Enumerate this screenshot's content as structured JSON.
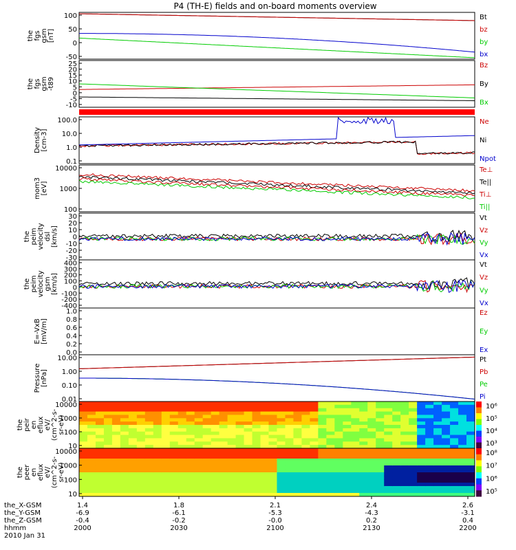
{
  "title": "P4 (TH-E) fields and on-board moments overview",
  "colors": {
    "black": "#000000",
    "red": "#cc0000",
    "green": "#00cc00",
    "blue": "#0000cc",
    "bright_red": "#ff0000",
    "stripe": "#ff0000"
  },
  "chart_data": [
    {
      "type": "line",
      "ylabel": [
        "the",
        "fgs",
        "gsm",
        "[nT]"
      ],
      "yticks": [
        "100",
        "50",
        "0",
        "-50"
      ],
      "ylim": [
        -85,
        110
      ],
      "legend": [
        {
          "label": "Bt",
          "color": "black"
        },
        {
          "label": "bz",
          "color": "red"
        },
        {
          "label": "by",
          "color": "green"
        },
        {
          "label": "bx",
          "color": "blue"
        }
      ]
    },
    {
      "type": "line",
      "ylabel": [
        "the",
        "fgs",
        "gsm",
        "-t89"
      ],
      "yticks": [
        "25",
        "20",
        "15",
        "10",
        "5",
        "0",
        "-5",
        "-10"
      ],
      "ylim": [
        -13,
        25
      ],
      "legend": [
        {
          "label": "Bz",
          "color": "red"
        },
        {
          "label": "By",
          "color": "black"
        },
        {
          "label": "Bx",
          "color": "green"
        }
      ]
    },
    {
      "type": "line",
      "ylabel": [
        "Density",
        "[cm-3]"
      ],
      "yticks": [
        "100.0",
        "10.0",
        "1.0",
        "0.1"
      ],
      "ylim": [
        0.07,
        300
      ],
      "log": true,
      "legend": [
        {
          "label": "Ne",
          "color": "red"
        },
        {
          "label": "Ni",
          "color": "black"
        },
        {
          "label": "Npot",
          "color": "blue"
        }
      ]
    },
    {
      "type": "line",
      "ylabel": [
        "mom3",
        "[eV]"
      ],
      "yticks": [
        "10000",
        "1000",
        "100"
      ],
      "ylim": [
        30,
        10000
      ],
      "log": true,
      "legend": [
        {
          "label": "Te⊥",
          "color": "red"
        },
        {
          "label": "Te||",
          "color": "black"
        },
        {
          "label": "Ti⊥",
          "color": "red"
        },
        {
          "label": "Ti||",
          "color": "green"
        }
      ]
    },
    {
      "type": "line",
      "ylabel": [
        "the",
        "peim",
        "velocity",
        "dsl",
        "[km/s]"
      ],
      "yticks": [
        "30",
        "20",
        "10",
        "0",
        "-10",
        "-20",
        "-30"
      ],
      "ylim": [
        -35,
        35
      ],
      "legend": [
        {
          "label": "Vt",
          "color": "black"
        },
        {
          "label": "Vz",
          "color": "red"
        },
        {
          "label": "Vy",
          "color": "green"
        },
        {
          "label": "Vx",
          "color": "blue"
        }
      ]
    },
    {
      "type": "line",
      "ylabel": [
        "the",
        "peim",
        "velocity",
        "gsm",
        "[km/s]"
      ],
      "yticks": [
        "400",
        "300",
        "200",
        "100",
        "0",
        "-100",
        "-200",
        "-400"
      ],
      "ylim": [
        -450,
        420
      ],
      "legend": [
        {
          "label": "Vt",
          "color": "black"
        },
        {
          "label": "Vz",
          "color": "red"
        },
        {
          "label": "Vy",
          "color": "green"
        },
        {
          "label": "Vx",
          "color": "blue"
        }
      ]
    },
    {
      "type": "line",
      "ylabel": [
        "E=-VxB",
        "[mV/m]"
      ],
      "yticks": [
        "1.0",
        "0.8",
        "0.6",
        "0.4",
        "0.2",
        "0.0"
      ],
      "ylim": [
        0,
        1
      ],
      "legend": [
        {
          "label": "Ez",
          "color": "red"
        },
        {
          "label": "Ey",
          "color": "green"
        },
        {
          "label": "Ex",
          "color": "blue"
        }
      ]
    },
    {
      "type": "line",
      "ylabel": [
        "Pressure",
        "[nPa]"
      ],
      "yticks": [
        "10.00",
        "1.00",
        "0.10",
        "0.01"
      ],
      "ylim": [
        0.005,
        20
      ],
      "log": true,
      "legend": [
        {
          "label": "Pt",
          "color": "black"
        },
        {
          "label": "Pb",
          "color": "red"
        },
        {
          "label": "Pe",
          "color": "green"
        },
        {
          "label": "Pi",
          "color": "blue"
        }
      ]
    },
    {
      "type": "heatmap",
      "ylabel": [
        "the",
        "peir",
        "en",
        "eflux",
        "eV/",
        "(cm^2-s-",
        "sr-eV)"
      ],
      "yticks": [
        "10000",
        "1000",
        "100",
        "10"
      ],
      "ylim": [
        7,
        20000
      ],
      "log": true,
      "colorbar": [
        "10⁶",
        "10⁵",
        "10⁴",
        "10³"
      ]
    },
    {
      "type": "heatmap",
      "ylabel": [
        "the",
        "peer",
        "en",
        "eflux",
        "eV/",
        "(cm^2-s-",
        "sr-eV)"
      ],
      "yticks": [
        "10000",
        "1000",
        "100",
        "10"
      ],
      "ylim": [
        7,
        20000
      ],
      "log": true,
      "colorbar": [
        "10⁸",
        "10⁷",
        "10⁶",
        "10⁵"
      ]
    }
  ],
  "xaxis": {
    "rows": [
      {
        "label": "the_X-GSM",
        "values": [
          "1.4",
          "1.8",
          "2.1",
          "2.4",
          "2.6"
        ]
      },
      {
        "label": "the_Y-GSM",
        "values": [
          "-6.9",
          "-6.1",
          "-5.3",
          "-4.3",
          "-3.1"
        ]
      },
      {
        "label": "the_Z-GSM",
        "values": [
          "-0.4",
          "-0.2",
          "-0.0",
          "0.2",
          "0.4"
        ]
      },
      {
        "label": "hhmm",
        "values": [
          "2000",
          "2030",
          "2100",
          "2130",
          "2200"
        ]
      }
    ],
    "date": "2010 Jan 31"
  }
}
